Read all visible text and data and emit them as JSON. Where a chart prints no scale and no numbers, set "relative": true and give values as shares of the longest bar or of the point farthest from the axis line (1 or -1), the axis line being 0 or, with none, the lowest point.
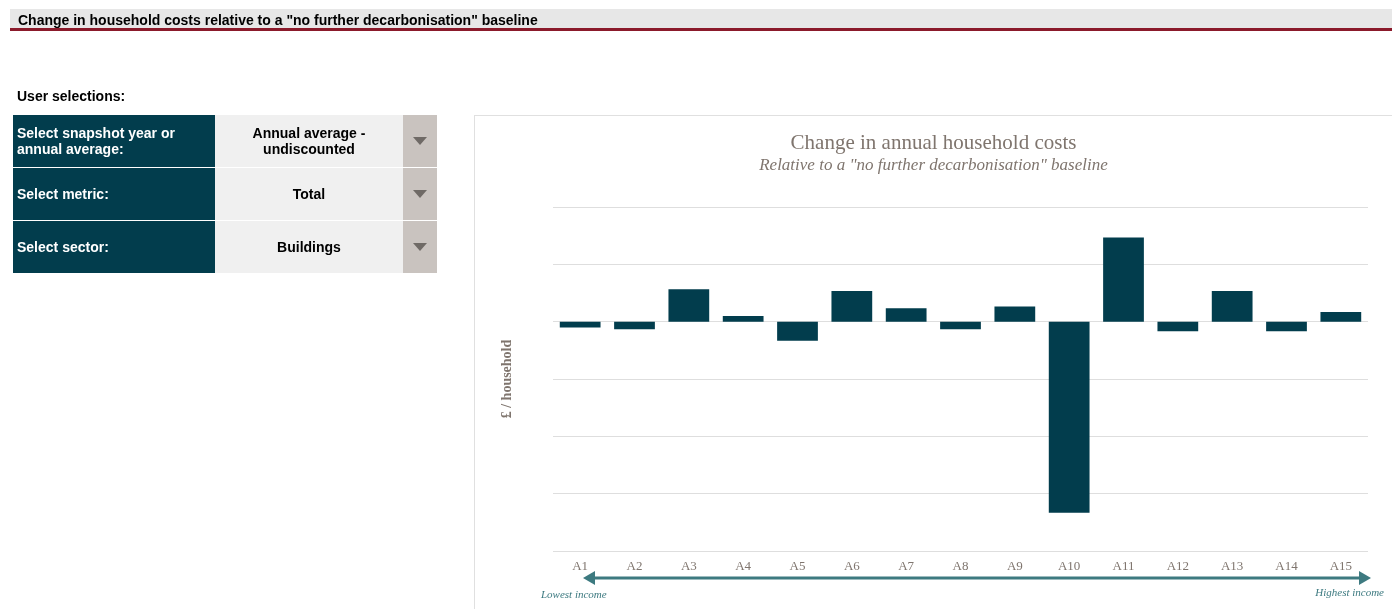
{
  "chart_data": [
    {
      "type": "other",
      "title": "Change in household costs relative to a \"no further decarbonisation\" baseline",
      "subtitle": "User selections:",
      "annotations": [
        "Select snapshot year or annual average:",
        "Annual average - undiscounted",
        "Select metric:",
        "Total",
        "Select sector:",
        "Buildings"
      ]
    },
    {
      "type": "bar",
      "title": "Change in annual household costs",
      "subtitle": "Relative to a \"no further decarbonisation\" baseline",
      "ylabel": "£ / household",
      "categories": [
        "A1",
        "A2",
        "A3",
        "A4",
        "A5",
        "A6",
        "A7",
        "A8",
        "A9",
        "A10",
        "A11",
        "A12",
        "A13",
        "A14",
        "A15"
      ],
      "values": [
        -0.03,
        -0.04,
        0.17,
        0.03,
        -0.1,
        0.16,
        0.07,
        -0.04,
        0.08,
        -1,
        0.44,
        -0.05,
        0.16,
        -0.05,
        0.05
      ],
      "color": "#023d4d",
      "relative": true,
      "grid": "y",
      "annotations": [
        "Lowest income",
        "Highest income"
      ]
    }
  ]
}
